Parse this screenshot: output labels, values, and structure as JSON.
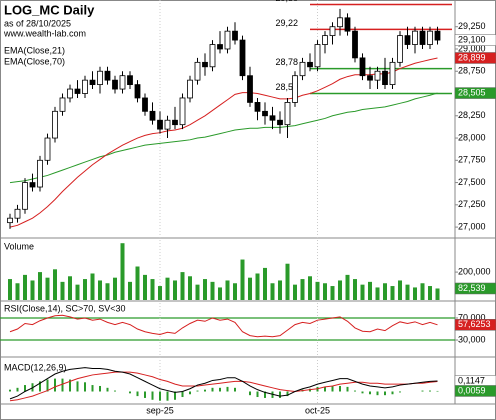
{
  "chart_data": {
    "type": "candlestick",
    "title": "LOG_MC Daily",
    "subtitle": "as of 28/10/2025",
    "source": "www.wealth-lab.com",
    "legend": [
      "EMA(Close,21)",
      "EMA(Close,70)"
    ],
    "categories": [
      null,
      null,
      null,
      null,
      null,
      null,
      null,
      null,
      null,
      null,
      null,
      null,
      null,
      null,
      null,
      null,
      null,
      null,
      null,
      null,
      "sep-25",
      null,
      null,
      null,
      null,
      null,
      null,
      null,
      null,
      null,
      null,
      null,
      null,
      null,
      null,
      null,
      null,
      null,
      null,
      null,
      null,
      "oct-25",
      null,
      null,
      null,
      null,
      null,
      null,
      null,
      null,
      null,
      null,
      null,
      null,
      null,
      null,
      null,
      null
    ],
    "ylim": [
      26900,
      29550
    ],
    "yticks": [
      {
        "value": 27000,
        "label": "27,000"
      },
      {
        "value": 27250,
        "label": "27,250"
      },
      {
        "value": 27500,
        "label": "27,500"
      },
      {
        "value": 27750,
        "label": "27,750"
      },
      {
        "value": 28000,
        "label": "28,000"
      },
      {
        "value": 28250,
        "label": "28,250"
      },
      {
        "value": 28500,
        "label": "28,500"
      },
      {
        "value": 28750,
        "label": "28,750"
      },
      {
        "value": 29000,
        "label": "29,000"
      },
      {
        "value": 29250,
        "label": "29,250"
      }
    ],
    "levels": [
      {
        "value": 29500,
        "label": "29,50",
        "color": "#d62020"
      },
      {
        "value": 29220,
        "label": "29,22",
        "color": "#d62020"
      },
      {
        "value": 28780,
        "label": "28,78",
        "color": "#2a9a2a"
      },
      {
        "value": 28500,
        "label": "28,50",
        "color": "#2a9a2a"
      }
    ],
    "candles": [
      [
        27050,
        27150,
        26980,
        27100
      ],
      [
        27100,
        27250,
        27050,
        27200
      ],
      [
        27200,
        27550,
        27150,
        27500
      ],
      [
        27500,
        27600,
        27400,
        27450
      ],
      [
        27450,
        27800,
        27400,
        27750
      ],
      [
        27750,
        28050,
        27700,
        28000
      ],
      [
        28000,
        28350,
        27950,
        28300
      ],
      [
        28300,
        28500,
        28250,
        28450
      ],
      [
        28450,
        28600,
        28400,
        28550
      ],
      [
        28550,
        28650,
        28450,
        28500
      ],
      [
        28500,
        28700,
        28450,
        28650
      ],
      [
        28650,
        28750,
        28550,
        28600
      ],
      [
        28600,
        28800,
        28500,
        28750
      ],
      [
        28750,
        28800,
        28600,
        28650
      ],
      [
        28650,
        28700,
        28500,
        28550
      ],
      [
        28550,
        28750,
        28500,
        28700
      ],
      [
        28700,
        28750,
        28550,
        28600
      ],
      [
        28600,
        28650,
        28400,
        28450
      ],
      [
        28450,
        28500,
        28250,
        28300
      ],
      [
        28300,
        28400,
        28150,
        28200
      ],
      [
        28200,
        28300,
        28050,
        28100
      ],
      [
        28100,
        28250,
        28000,
        28200
      ],
      [
        28200,
        28350,
        28100,
        28150
      ],
      [
        28150,
        28500,
        28100,
        28450
      ],
      [
        28450,
        28700,
        28400,
        28650
      ],
      [
        28650,
        28900,
        28600,
        28850
      ],
      [
        28850,
        28950,
        28700,
        28800
      ],
      [
        28800,
        29100,
        28750,
        29050
      ],
      [
        29050,
        29200,
        28950,
        29000
      ],
      [
        29000,
        29250,
        28950,
        29200
      ],
      [
        29200,
        29300,
        29050,
        29100
      ],
      [
        29100,
        29150,
        28650,
        28700
      ],
      [
        28700,
        28800,
        28350,
        28400
      ],
      [
        28400,
        28450,
        28200,
        28300
      ],
      [
        28300,
        28400,
        28150,
        28250
      ],
      [
        28250,
        28350,
        28100,
        28200
      ],
      [
        28200,
        28300,
        28050,
        28150
      ],
      [
        28150,
        28450,
        28000,
        28400
      ],
      [
        28400,
        28750,
        28350,
        28700
      ],
      [
        28700,
        28900,
        28650,
        28850
      ],
      [
        28850,
        28950,
        28750,
        28800
      ],
      [
        28800,
        29100,
        28750,
        29050
      ],
      [
        29050,
        29200,
        28950,
        29150
      ],
      [
        29150,
        29300,
        29050,
        29250
      ],
      [
        29250,
        29450,
        29150,
        29350
      ],
      [
        29350,
        29400,
        29150,
        29200
      ],
      [
        29200,
        29250,
        28850,
        28900
      ],
      [
        28900,
        28950,
        28650,
        28700
      ],
      [
        28700,
        28800,
        28550,
        28650
      ],
      [
        28650,
        28800,
        28550,
        28750
      ],
      [
        28750,
        28900,
        28550,
        28600
      ],
      [
        28600,
        28900,
        28550,
        28850
      ],
      [
        28850,
        29200,
        28800,
        29150
      ],
      [
        29150,
        29250,
        29000,
        29050
      ],
      [
        29050,
        29250,
        28950,
        29200
      ],
      [
        29200,
        29250,
        29000,
        29050
      ],
      [
        29050,
        29250,
        29000,
        29200
      ],
      [
        29200,
        29250,
        29050,
        29100
      ]
    ],
    "ema21": [
      27000,
      27020,
      27060,
      27100,
      27160,
      27230,
      27310,
      27400,
      27480,
      27560,
      27630,
      27700,
      27760,
      27820,
      27870,
      27920,
      27960,
      28000,
      28030,
      28050,
      28060,
      28080,
      28090,
      28110,
      28150,
      28200,
      28250,
      28310,
      28370,
      28430,
      28490,
      28510,
      28510,
      28500,
      28480,
      28460,
      28440,
      28440,
      28450,
      28480,
      28500,
      28530,
      28570,
      28610,
      28660,
      28690,
      28710,
      28710,
      28710,
      28720,
      28720,
      28740,
      28780,
      28810,
      28840,
      28860,
      28880,
      28899
    ],
    "ema70": [
      27500,
      27510,
      27520,
      27540,
      27560,
      27580,
      27610,
      27640,
      27670,
      27700,
      27730,
      27760,
      27790,
      27810,
      27840,
      27860,
      27880,
      27900,
      27920,
      27930,
      27940,
      27950,
      27960,
      27970,
      27980,
      28000,
      28010,
      28030,
      28050,
      28070,
      28090,
      28100,
      28110,
      28110,
      28120,
      28120,
      28120,
      28130,
      28140,
      28160,
      28180,
      28200,
      28220,
      28250,
      28270,
      28290,
      28300,
      28320,
      28330,
      28340,
      28350,
      28370,
      28390,
      28410,
      28440,
      28460,
      28480,
      28505
    ],
    "volume_title": "Volume",
    "volume_ylim": [
      0,
      430000
    ],
    "volume_yticks": [
      {
        "value": 200000,
        "label": "200,000"
      }
    ],
    "volume": [
      150000,
      120000,
      180000,
      140000,
      200000,
      160000,
      220000,
      130000,
      170000,
      110000,
      150000,
      190000,
      140000,
      120000,
      160000,
      407000,
      130000,
      240000,
      180000,
      150000,
      100000,
      160000,
      140000,
      200000,
      170000,
      110000,
      150000,
      130000,
      90000,
      140000,
      120000,
      290000,
      160000,
      190000,
      230000,
      120000,
      140000,
      260000,
      110000,
      150000,
      170000,
      130000,
      120000,
      100000,
      140000,
      180000,
      150000,
      110000,
      130000,
      90000,
      120000,
      100000,
      140000,
      110000,
      90000,
      120000,
      100000,
      82539
    ],
    "rsi_title": "RSI(Close,14), SC>70, SV<30",
    "rsi_ylim": [
      1,
      99
    ],
    "rsi_yticks": [
      {
        "value": 70,
        "label": "70,000"
      },
      {
        "value": 30,
        "label": "30,000"
      }
    ],
    "rsi": [
      45,
      50,
      60,
      58,
      65,
      70,
      74,
      75,
      72,
      68,
      70,
      66,
      68,
      62,
      58,
      62,
      58,
      50,
      45,
      42,
      40,
      44,
      42,
      52,
      60,
      66,
      64,
      70,
      66,
      68,
      62,
      45,
      38,
      36,
      37,
      36,
      38,
      48,
      58,
      62,
      60,
      66,
      68,
      70,
      72,
      64,
      52,
      46,
      45,
      50,
      47,
      56,
      63,
      60,
      63,
      58,
      62,
      57.6253
    ],
    "macd_title": "MACD(12,26,9)",
    "macd_ylim": [
      -0.125,
      0.364
    ],
    "macd": [
      -0.08,
      -0.05,
      0.0,
      0.04,
      0.09,
      0.14,
      0.19,
      0.22,
      0.24,
      0.25,
      0.26,
      0.25,
      0.25,
      0.24,
      0.22,
      0.21,
      0.19,
      0.15,
      0.11,
      0.07,
      0.03,
      0.01,
      -0.01,
      0.0,
      0.03,
      0.07,
      0.09,
      0.12,
      0.13,
      0.15,
      0.15,
      0.11,
      0.06,
      0.02,
      -0.01,
      -0.03,
      -0.05,
      -0.04,
      0.0,
      0.03,
      0.05,
      0.08,
      0.1,
      0.12,
      0.14,
      0.14,
      0.11,
      0.08,
      0.06,
      0.05,
      0.04,
      0.05,
      0.07,
      0.08,
      0.09,
      0.1,
      0.11,
      0.1147
    ],
    "signal": [
      -0.1,
      -0.09,
      -0.07,
      -0.05,
      -0.02,
      0.01,
      0.05,
      0.08,
      0.11,
      0.14,
      0.16,
      0.18,
      0.19,
      0.2,
      0.21,
      0.21,
      0.21,
      0.2,
      0.18,
      0.16,
      0.13,
      0.11,
      0.08,
      0.06,
      0.06,
      0.06,
      0.07,
      0.08,
      0.09,
      0.1,
      0.11,
      0.11,
      0.1,
      0.08,
      0.06,
      0.04,
      0.02,
      0.01,
      0.0,
      0.01,
      0.02,
      0.03,
      0.05,
      0.06,
      0.08,
      0.09,
      0.1,
      0.1,
      0.09,
      0.09,
      0.08,
      0.08,
      0.08,
      0.08,
      0.09,
      0.09,
      0.1,
      0.1088
    ],
    "histogram": [
      0.02,
      0.04,
      0.07,
      0.09,
      0.11,
      0.13,
      0.14,
      0.14,
      0.13,
      0.11,
      0.1,
      0.07,
      0.06,
      0.04,
      0.01,
      0,
      -0.02,
      -0.05,
      -0.07,
      -0.09,
      -0.1,
      -0.1,
      -0.09,
      -0.06,
      -0.03,
      0.01,
      0.02,
      0.04,
      0.04,
      0.05,
      0.04,
      0,
      -0.04,
      -0.06,
      -0.07,
      -0.07,
      -0.07,
      -0.05,
      0,
      0.02,
      0.03,
      0.05,
      0.05,
      0.06,
      0.06,
      0.05,
      0.01,
      -0.02,
      -0.03,
      -0.04,
      -0.04,
      -0.03,
      -0.01,
      0,
      0,
      0.01,
      0.01,
      0.0059
    ],
    "flags": {
      "price": "29,100",
      "ema21": "28,899",
      "ema70": "28,505",
      "volume": "82,539",
      "rsi": "57,6253",
      "macd": "0,1147",
      "histogram": "0,0059"
    }
  }
}
